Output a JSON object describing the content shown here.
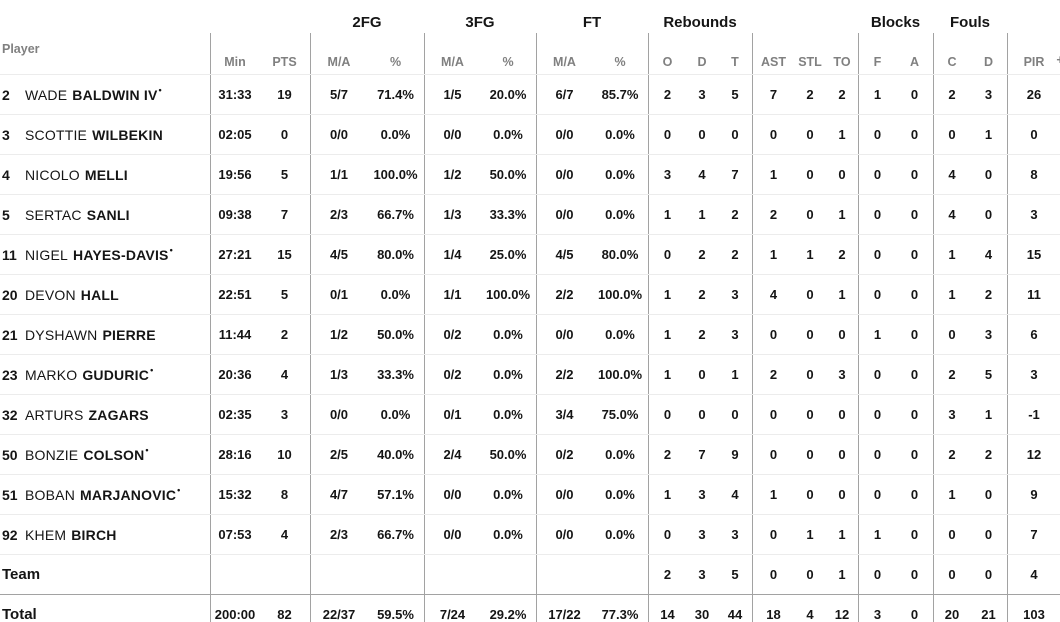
{
  "table": {
    "player_column_label": "Player",
    "starter_marker": "•",
    "clipped_next_header": "+",
    "group_headers": [
      "2FG",
      "3FG",
      "FT",
      "Rebounds",
      "Blocks",
      "Fouls"
    ],
    "sub_headers": [
      "Min",
      "PTS",
      "M/A",
      "%",
      "M/A",
      "%",
      "M/A",
      "%",
      "O",
      "D",
      "T",
      "AST",
      "STL",
      "TO",
      "F",
      "A",
      "C",
      "D",
      "PIR"
    ],
    "column_keys": [
      "min",
      "pts",
      "2fg-ma",
      "2fg-pct",
      "3fg-ma",
      "3fg-pct",
      "ft-ma",
      "ft-pct",
      "reb-o",
      "reb-d",
      "reb-t",
      "ast",
      "stl",
      "to",
      "blk-f",
      "blk-a",
      "foul-c",
      "foul-d",
      "pir"
    ],
    "players": [
      {
        "number": "2",
        "first": "WADE",
        "last": "BALDWIN IV",
        "starter": true,
        "stats": [
          "31:33",
          "19",
          "5/7",
          "71.4%",
          "1/5",
          "20.0%",
          "6/7",
          "85.7%",
          "2",
          "3",
          "5",
          "7",
          "2",
          "2",
          "1",
          "0",
          "2",
          "3",
          "26"
        ]
      },
      {
        "number": "3",
        "first": "SCOTTIE",
        "last": "WILBEKIN",
        "starter": false,
        "stats": [
          "02:05",
          "0",
          "0/0",
          "0.0%",
          "0/0",
          "0.0%",
          "0/0",
          "0.0%",
          "0",
          "0",
          "0",
          "0",
          "0",
          "1",
          "0",
          "0",
          "0",
          "1",
          "0"
        ]
      },
      {
        "number": "4",
        "first": "NICOLO",
        "last": "MELLI",
        "starter": false,
        "stats": [
          "19:56",
          "5",
          "1/1",
          "100.0%",
          "1/2",
          "50.0%",
          "0/0",
          "0.0%",
          "3",
          "4",
          "7",
          "1",
          "0",
          "0",
          "0",
          "0",
          "4",
          "0",
          "8"
        ]
      },
      {
        "number": "5",
        "first": "SERTAC",
        "last": "SANLI",
        "starter": false,
        "stats": [
          "09:38",
          "7",
          "2/3",
          "66.7%",
          "1/3",
          "33.3%",
          "0/0",
          "0.0%",
          "1",
          "1",
          "2",
          "2",
          "0",
          "1",
          "0",
          "0",
          "4",
          "0",
          "3"
        ]
      },
      {
        "number": "11",
        "first": "NIGEL",
        "last": "HAYES-DAVIS",
        "starter": true,
        "stats": [
          "27:21",
          "15",
          "4/5",
          "80.0%",
          "1/4",
          "25.0%",
          "4/5",
          "80.0%",
          "0",
          "2",
          "2",
          "1",
          "1",
          "2",
          "0",
          "0",
          "1",
          "4",
          "15"
        ]
      },
      {
        "number": "20",
        "first": "DEVON",
        "last": "HALL",
        "starter": false,
        "stats": [
          "22:51",
          "5",
          "0/1",
          "0.0%",
          "1/1",
          "100.0%",
          "2/2",
          "100.0%",
          "1",
          "2",
          "3",
          "4",
          "0",
          "1",
          "0",
          "0",
          "1",
          "2",
          "11"
        ]
      },
      {
        "number": "21",
        "first": "DYSHAWN",
        "last": "PIERRE",
        "starter": false,
        "stats": [
          "11:44",
          "2",
          "1/2",
          "50.0%",
          "0/2",
          "0.0%",
          "0/0",
          "0.0%",
          "1",
          "2",
          "3",
          "0",
          "0",
          "0",
          "1",
          "0",
          "0",
          "3",
          "6"
        ]
      },
      {
        "number": "23",
        "first": "MARKO",
        "last": "GUDURIC",
        "starter": true,
        "stats": [
          "20:36",
          "4",
          "1/3",
          "33.3%",
          "0/2",
          "0.0%",
          "2/2",
          "100.0%",
          "1",
          "0",
          "1",
          "2",
          "0",
          "3",
          "0",
          "0",
          "2",
          "5",
          "3"
        ]
      },
      {
        "number": "32",
        "first": "ARTURS",
        "last": "ZAGARS",
        "starter": false,
        "stats": [
          "02:35",
          "3",
          "0/0",
          "0.0%",
          "0/1",
          "0.0%",
          "3/4",
          "75.0%",
          "0",
          "0",
          "0",
          "0",
          "0",
          "0",
          "0",
          "0",
          "3",
          "1",
          "-1"
        ]
      },
      {
        "number": "50",
        "first": "BONZIE",
        "last": "COLSON",
        "starter": true,
        "stats": [
          "28:16",
          "10",
          "2/5",
          "40.0%",
          "2/4",
          "50.0%",
          "0/2",
          "0.0%",
          "2",
          "7",
          "9",
          "0",
          "0",
          "0",
          "0",
          "0",
          "2",
          "2",
          "12"
        ]
      },
      {
        "number": "51",
        "first": "BOBAN",
        "last": "MARJANOVIC",
        "starter": true,
        "stats": [
          "15:32",
          "8",
          "4/7",
          "57.1%",
          "0/0",
          "0.0%",
          "0/0",
          "0.0%",
          "1",
          "3",
          "4",
          "1",
          "0",
          "0",
          "0",
          "0",
          "1",
          "0",
          "9"
        ]
      },
      {
        "number": "92",
        "first": "KHEM",
        "last": "BIRCH",
        "starter": false,
        "stats": [
          "07:53",
          "4",
          "2/3",
          "66.7%",
          "0/0",
          "0.0%",
          "0/0",
          "0.0%",
          "0",
          "3",
          "3",
          "0",
          "1",
          "1",
          "1",
          "0",
          "0",
          "0",
          "7"
        ]
      }
    ],
    "team_row": {
      "label": "Team",
      "stats": [
        "",
        "",
        "",
        "",
        "",
        "",
        "",
        "",
        "2",
        "3",
        "5",
        "0",
        "0",
        "1",
        "0",
        "0",
        "0",
        "0",
        "4"
      ]
    },
    "total_row": {
      "label": "Total",
      "stats": [
        "200:00",
        "82",
        "22/37",
        "59.5%",
        "7/24",
        "29.2%",
        "17/22",
        "77.3%",
        "14",
        "30",
        "44",
        "18",
        "4",
        "12",
        "3",
        "0",
        "20",
        "21",
        "103"
      ]
    }
  },
  "colors": {
    "text": "#151515",
    "muted_header": "#808080",
    "divider": "#a2a2a2",
    "row_line": "#ececec",
    "background": "#ffffff"
  }
}
